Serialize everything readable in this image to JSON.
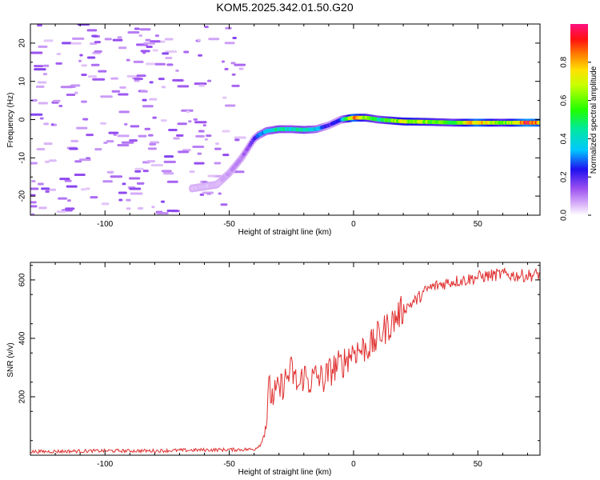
{
  "title": "KOM5.2025.342.01.50.G20",
  "chart_data": [
    {
      "type": "heatmap",
      "title": "KOM5.2025.342.01.50.G20",
      "xlabel": "Height of straight line (km)",
      "ylabel": "Frequency (Hz)",
      "xlim": [
        -130,
        75
      ],
      "ylim": [
        -25,
        25
      ],
      "xticks": [
        -100,
        -50,
        0,
        50
      ],
      "yticks": [
        -20,
        -10,
        0,
        10,
        20
      ],
      "signal_track": {
        "x": [
          -65,
          -55,
          -50,
          -45,
          -40,
          -38,
          -35,
          -30,
          -25,
          -20,
          -15,
          -10,
          -5,
          0,
          5,
          10,
          20,
          30,
          40,
          50,
          60,
          70,
          75
        ],
        "freq": [
          -18,
          -17,
          -14,
          -10,
          -5,
          -4,
          -3,
          -2.5,
          -2.5,
          -2.7,
          -2.5,
          -1.5,
          0,
          0.5,
          0.5,
          0,
          -0.5,
          -0.6,
          -0.8,
          -0.8,
          -0.8,
          -0.8,
          -0.8
        ],
        "amplitude": [
          0.05,
          0.05,
          0.08,
          0.1,
          0.2,
          0.3,
          0.35,
          0.45,
          0.4,
          0.45,
          0.35,
          0.2,
          0.25,
          0.85,
          0.6,
          0.45,
          0.7,
          0.6,
          0.5,
          0.85,
          0.55,
          0.9,
          0.8
        ]
      },
      "colorbar": {
        "label": "Normalized spectral amplitude",
        "range": [
          0.0,
          1.0
        ],
        "ticks": [
          "0.0",
          "0.2",
          "0.4",
          "0.6",
          "0.8"
        ]
      }
    },
    {
      "type": "line",
      "xlabel": "Height of straight line (km)",
      "ylabel": "SNR (v/v)",
      "xlim": [
        -130,
        75
      ],
      "ylim": [
        0,
        660
      ],
      "xticks": [
        -100,
        -50,
        0,
        50
      ],
      "yticks": [
        200,
        400,
        600
      ],
      "series": [
        {
          "name": "SNR",
          "color": "#e03030",
          "x": [
            -130,
            -100,
            -80,
            -60,
            -40,
            -37,
            -35,
            -34,
            -33,
            -30,
            -28,
            -25,
            -22,
            -20,
            -18,
            -15,
            -12,
            -10,
            -8,
            -5,
            -2,
            0,
            3,
            5,
            8,
            10,
            15,
            20,
            25,
            30,
            35,
            40,
            45,
            50,
            55,
            60,
            65,
            70,
            75
          ],
          "values": [
            12,
            15,
            15,
            18,
            20,
            40,
            120,
            230,
            200,
            220,
            250,
            290,
            230,
            280,
            250,
            270,
            260,
            280,
            300,
            310,
            340,
            360,
            360,
            370,
            380,
            410,
            450,
            500,
            530,
            570,
            585,
            595,
            600,
            610,
            615,
            620,
            615,
            615,
            620
          ]
        }
      ]
    }
  ]
}
